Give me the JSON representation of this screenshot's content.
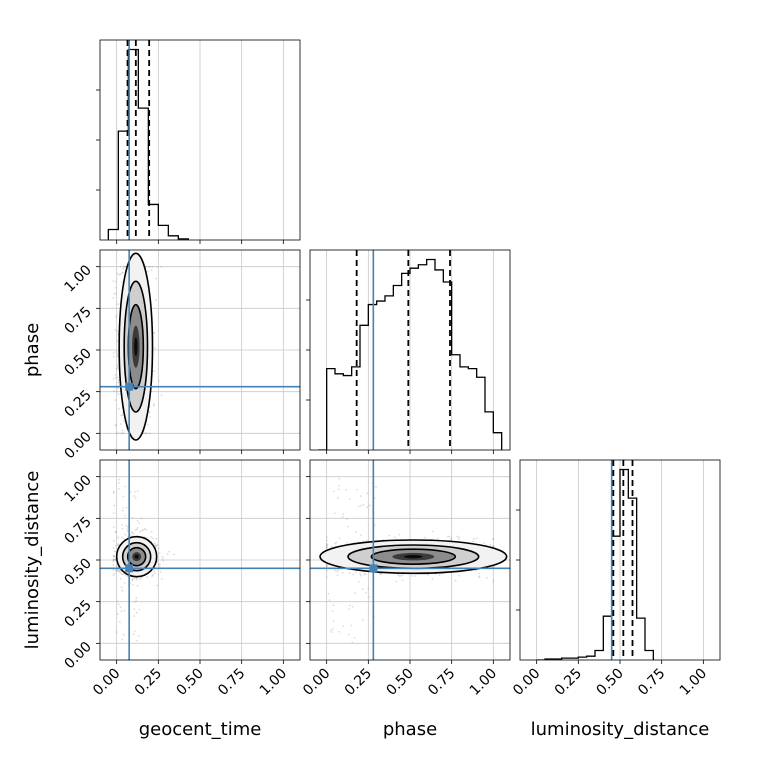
{
  "chart_data": {
    "type": "corner",
    "parameters": [
      "geocent_time",
      "phase",
      "luminosity_distance"
    ],
    "axis_ranges": {
      "geocent_time": [
        -0.1,
        1.1
      ],
      "phase": [
        -0.1,
        1.1
      ],
      "luminosity_distance": [
        -0.1,
        1.1
      ]
    },
    "ticks": [
      0.0,
      0.25,
      0.5,
      0.75,
      1.0
    ],
    "tick_labels": [
      "0.00",
      "0.25",
      "0.50",
      "0.75",
      "1.00"
    ],
    "grid": true,
    "colors": {
      "truth": "#4682b4",
      "hist": "#000000",
      "quantile": "#000000",
      "samples": "#9a9a9a"
    },
    "truths": {
      "geocent_time": 0.075,
      "phase": 0.28,
      "luminosity_distance": 0.45
    },
    "quantiles": {
      "geocent_time": [
        0.065,
        0.115,
        0.195
      ],
      "phase": [
        0.18,
        0.49,
        0.74
      ],
      "luminosity_distance": [
        0.46,
        0.52,
        0.575
      ]
    },
    "histograms": {
      "geocent_time": {
        "edges": [
          -0.05,
          0.01,
          0.07,
          0.13,
          0.19,
          0.25,
          0.31,
          0.37,
          0.43
        ],
        "counts": [
          0.05,
          0.52,
          0.91,
          0.63,
          0.17,
          0.07,
          0.02,
          0.005
        ]
      },
      "phase": {
        "edges": [
          -0.05,
          0.0,
          0.05,
          0.1,
          0.15,
          0.2,
          0.25,
          0.3,
          0.35,
          0.4,
          0.45,
          0.5,
          0.55,
          0.6,
          0.65,
          0.7,
          0.75,
          0.8,
          0.85,
          0.9,
          0.95,
          1.0,
          1.05
        ],
        "counts": [
          0.0,
          0.47,
          0.44,
          0.43,
          0.48,
          0.72,
          0.84,
          0.86,
          0.89,
          0.95,
          1.02,
          1.05,
          1.07,
          1.1,
          1.04,
          0.97,
          0.55,
          0.48,
          0.47,
          0.42,
          0.22,
          0.1
        ]
      },
      "luminosity_distance": {
        "edges": [
          0.0,
          0.05,
          0.1,
          0.15,
          0.2,
          0.25,
          0.3,
          0.35,
          0.4,
          0.45,
          0.5,
          0.55,
          0.6,
          0.65,
          0.7
        ],
        "counts": [
          0.0,
          0.005,
          0.005,
          0.01,
          0.01,
          0.015,
          0.02,
          0.05,
          0.23,
          0.65,
          1.0,
          0.85,
          0.22,
          0.05
        ]
      }
    },
    "axis_labels": {
      "x": [
        "geocent_time",
        "phase",
        "luminosity_distance"
      ],
      "y": [
        "",
        "phase",
        "luminosity_distance"
      ]
    }
  }
}
